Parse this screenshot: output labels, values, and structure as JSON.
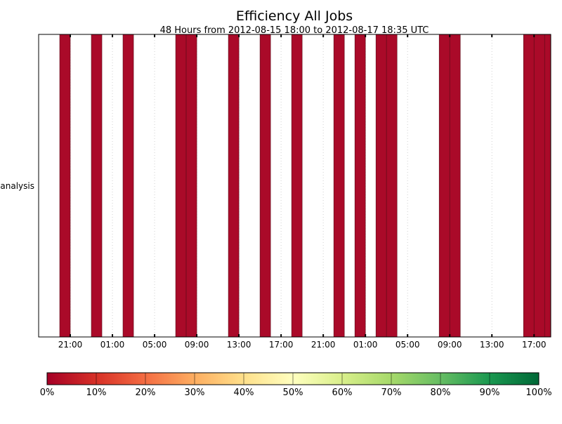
{
  "chart_data": {
    "type": "heatmap",
    "title": "Efficiency All Jobs",
    "subtitle": "48 Hours from 2012-08-15 18:00 to 2012-08-17 18:35 UTC",
    "categories": [
      "analysis"
    ],
    "x_ticks": [
      "21:00",
      "01:00",
      "05:00",
      "09:00",
      "13:00",
      "17:00",
      "21:00",
      "01:00",
      "05:00",
      "09:00",
      "13:00",
      "17:00"
    ],
    "xlim": [
      "2012-08-15 18:00",
      "2012-08-17 18:35"
    ],
    "bin_minutes": 60,
    "cells": [
      {
        "start": "2012-08-15 20:00",
        "efficiency": 0.0
      },
      {
        "start": "2012-08-15 23:00",
        "efficiency": 0.0
      },
      {
        "start": "2012-08-16 02:00",
        "efficiency": 0.0
      },
      {
        "start": "2012-08-16 07:00",
        "efficiency": 0.0
      },
      {
        "start": "2012-08-16 08:00",
        "efficiency": 0.0
      },
      {
        "start": "2012-08-16 12:00",
        "efficiency": 0.0
      },
      {
        "start": "2012-08-16 15:00",
        "efficiency": 0.0
      },
      {
        "start": "2012-08-16 18:00",
        "efficiency": 0.0
      },
      {
        "start": "2012-08-16 22:00",
        "efficiency": 0.0
      },
      {
        "start": "2012-08-17 00:00",
        "efficiency": 0.0
      },
      {
        "start": "2012-08-17 02:00",
        "efficiency": 0.0
      },
      {
        "start": "2012-08-17 03:00",
        "efficiency": 0.0
      },
      {
        "start": "2012-08-17 08:00",
        "efficiency": 0.0
      },
      {
        "start": "2012-08-17 09:00",
        "efficiency": 0.0
      },
      {
        "start": "2012-08-17 16:00",
        "efficiency": 0.0
      },
      {
        "start": "2012-08-17 17:00",
        "efficiency": 0.0
      },
      {
        "start": "2012-08-17 18:00",
        "efficiency": 0.0
      }
    ],
    "colorbar": {
      "range": [
        0,
        100
      ],
      "tick_labels": [
        "0%",
        "10%",
        "20%",
        "30%",
        "40%",
        "50%",
        "60%",
        "70%",
        "80%",
        "90%",
        "100%"
      ],
      "colors": [
        "#a50026",
        "#d73027",
        "#f46d43",
        "#fdae61",
        "#fee08b",
        "#ffffbf",
        "#d9ef8b",
        "#a6d96a",
        "#66bd63",
        "#1a9850",
        "#006837"
      ]
    },
    "grid": true,
    "cell_color": "#aa0a29"
  }
}
